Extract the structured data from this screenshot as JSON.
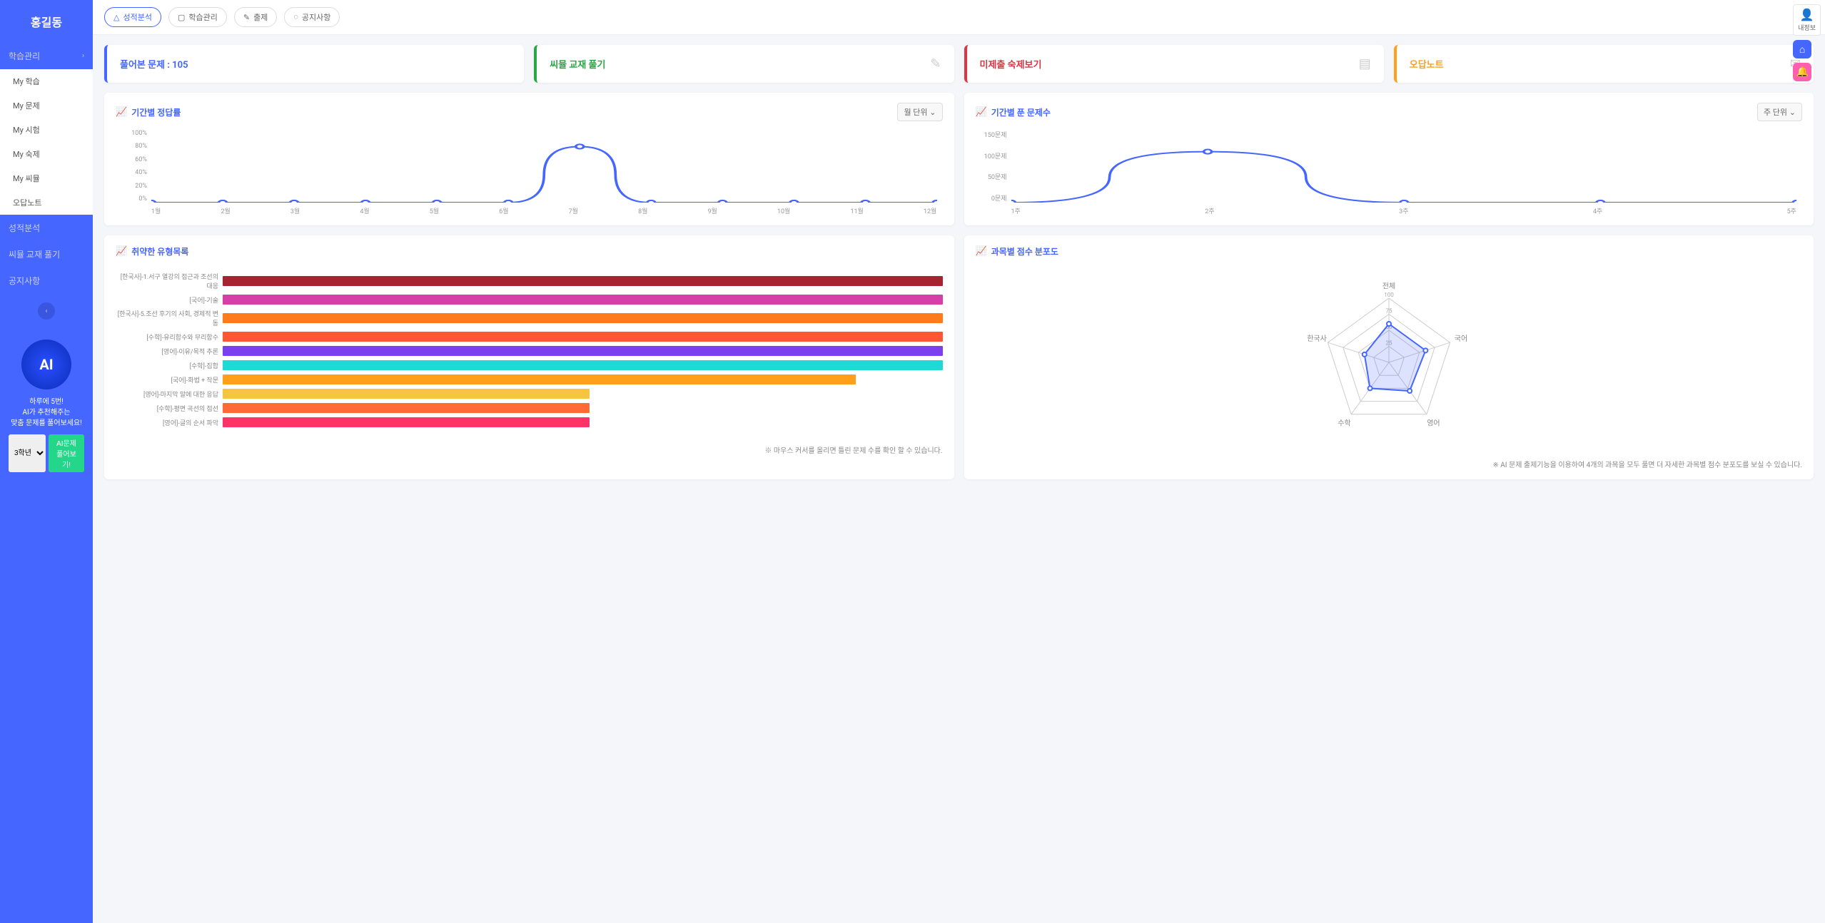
{
  "user": {
    "name": "홍길동"
  },
  "sidebar": {
    "nav1": {
      "label": "학습관리",
      "sub": [
        "My 학습",
        "My 문제",
        "My 시험",
        "My 숙제",
        "My 씨뮬",
        "오답노트"
      ]
    },
    "items": [
      "성적분석",
      "씨뮬 교재 풀기",
      "공지사항"
    ]
  },
  "ai": {
    "badge": "AI",
    "line1": "하루에 5번!",
    "line2": "AI가 추천해주는",
    "line3": "맞춤 문제를 풀어보세요!",
    "grade": "3학년",
    "button": "AI문제 풀어보기!"
  },
  "topbar": {
    "b1": "성적분석",
    "b2": "학습관리",
    "b3": "출제",
    "b4": "공지사항"
  },
  "cards": {
    "c1": "풀어본 문제 : 105",
    "c2": "씨뮬 교재 풀기",
    "c3": "미제출 숙제보기",
    "c4": "오답노트"
  },
  "chart1": {
    "title": "기간별 정답률",
    "period": "월 단위",
    "y_labels": [
      "100%",
      "80%",
      "60%",
      "40%",
      "20%",
      "0%"
    ],
    "x_labels": [
      "1월",
      "2월",
      "3월",
      "4월",
      "5월",
      "6월",
      "7월",
      "8월",
      "9월",
      "10월",
      "11월",
      "12월"
    ],
    "values": [
      0,
      0,
      0,
      0,
      0,
      0,
      77,
      0,
      0,
      0,
      0,
      0
    ],
    "line_color": "#4566ff",
    "marker_color": "#4566ff"
  },
  "chart2": {
    "title": "기간별 푼 문제수",
    "period": "주 단위",
    "y_labels": [
      "150문제",
      "100문제",
      "50문제",
      "0문제"
    ],
    "x_labels": [
      "1주",
      "2주",
      "3주",
      "4주",
      "5주"
    ],
    "values": [
      0,
      105,
      0,
      0,
      0
    ],
    "max": 150,
    "line_color": "#4566ff"
  },
  "weak": {
    "title": "취약한 유형목록",
    "footer": "※ 마우스 커서를 올리면 틀린 문제 수를 확인 할 수 있습니다.",
    "bars": [
      {
        "label": "[한국사]-1.서구 열강의 접근과 조선의 대응",
        "value": 100,
        "color": "#a62431"
      },
      {
        "label": "[국어]-기술",
        "value": 100,
        "color": "#d63fa8"
      },
      {
        "label": "[한국사]-5.조선 후기의 사회, 경제적 변동",
        "value": 100,
        "color": "#ff7b1a"
      },
      {
        "label": "[수학]-유리함수와 무리함수",
        "value": 100,
        "color": "#ff5733"
      },
      {
        "label": "[영어]-이유/목적 추론",
        "value": 100,
        "color": "#7b3ff0"
      },
      {
        "label": "[수학]-집합",
        "value": 100,
        "color": "#1fd9d4"
      },
      {
        "label": "[국어]-화법 + 작문",
        "value": 88,
        "color": "#ff9f1a"
      },
      {
        "label": "[영어]-마지막 말에 대한 응답",
        "value": 51,
        "color": "#f5c542"
      },
      {
        "label": "[수학]-평면 곡선의 접선",
        "value": 51,
        "color": "#ff6b35"
      },
      {
        "label": "[영어]-글의 순서 파악",
        "value": 51,
        "color": "#ff3366"
      }
    ]
  },
  "radar": {
    "title": "과목별 점수 분포도",
    "footer": "※ AI 문제 출제기능을 이용하여 4개의 과목을 모두 풀면 더 자세한 과목별 점수 분포도를 보실 수 있습니다.",
    "axes": [
      "전체",
      "국어",
      "영어",
      "수학",
      "한국사"
    ],
    "ticks": [
      "100",
      "75",
      "50",
      "25"
    ],
    "values": [
      60,
      60,
      55,
      50,
      40
    ],
    "line_color": "#4566ff",
    "fill_color": "rgba(69,102,255,0.18)"
  },
  "rail": {
    "myinfo": "내정보"
  }
}
